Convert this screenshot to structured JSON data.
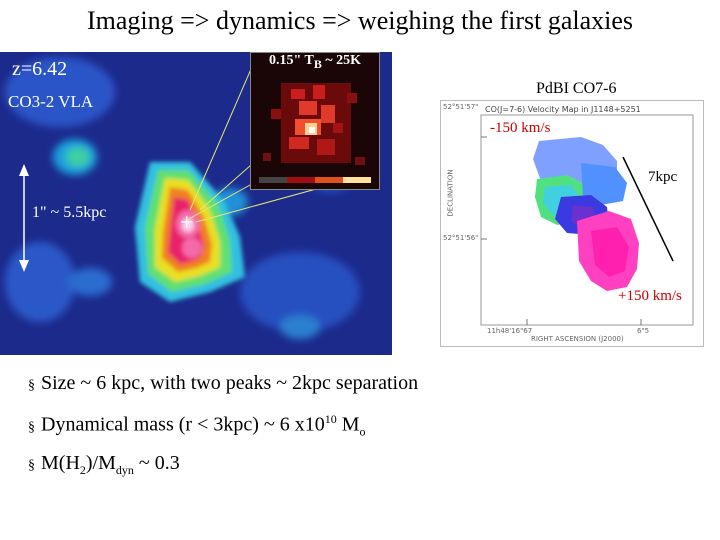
{
  "title": "Imaging => dynamics => weighing the first galaxies",
  "vla": {
    "redshift": "z=6.42",
    "label": "CO3-2 VLA",
    "scale": "1\" ~ 5.5kpc",
    "cross": "+"
  },
  "inset": {
    "label_prefix": "0.15\" T",
    "label_sub": "B",
    "label_suffix": " ~ 25K"
  },
  "pdbi": {
    "label": "PdBI CO7-6",
    "header": "CO(J=7-6) Velocity Map in J1148+5251",
    "ytick_top": "52°51'57\"",
    "ytick_bottom": "52°51'56\"",
    "yaxis": "DECLINATION",
    "xtick_left": "11h48'16\"67",
    "xtick_right": "6\"5",
    "xaxis": "RIGHT ASCENSION (J2000)",
    "vel_minus": "-150 km/s",
    "vel_plus": "+150 km/s",
    "kpc": "7kpc"
  },
  "bullets": {
    "b1": "Size ~ 6 kpc,  with two  peaks ~ 2kpc separation",
    "b2_text": "Dynamical mass (r < 3kpc) ~ 6 x10",
    "b2_exp": "10",
    "b2_unit": " M",
    "b2_unit_sub": "o",
    "b3_a": "M(H",
    "b3_sub1": "2",
    "b3_b": ")/M",
    "b3_sub2": "dyn",
    "b3_c": "  ~ 0.3"
  },
  "colors": {
    "velocity_negative": "#cc0000",
    "map_background": "#1c2a8c"
  }
}
